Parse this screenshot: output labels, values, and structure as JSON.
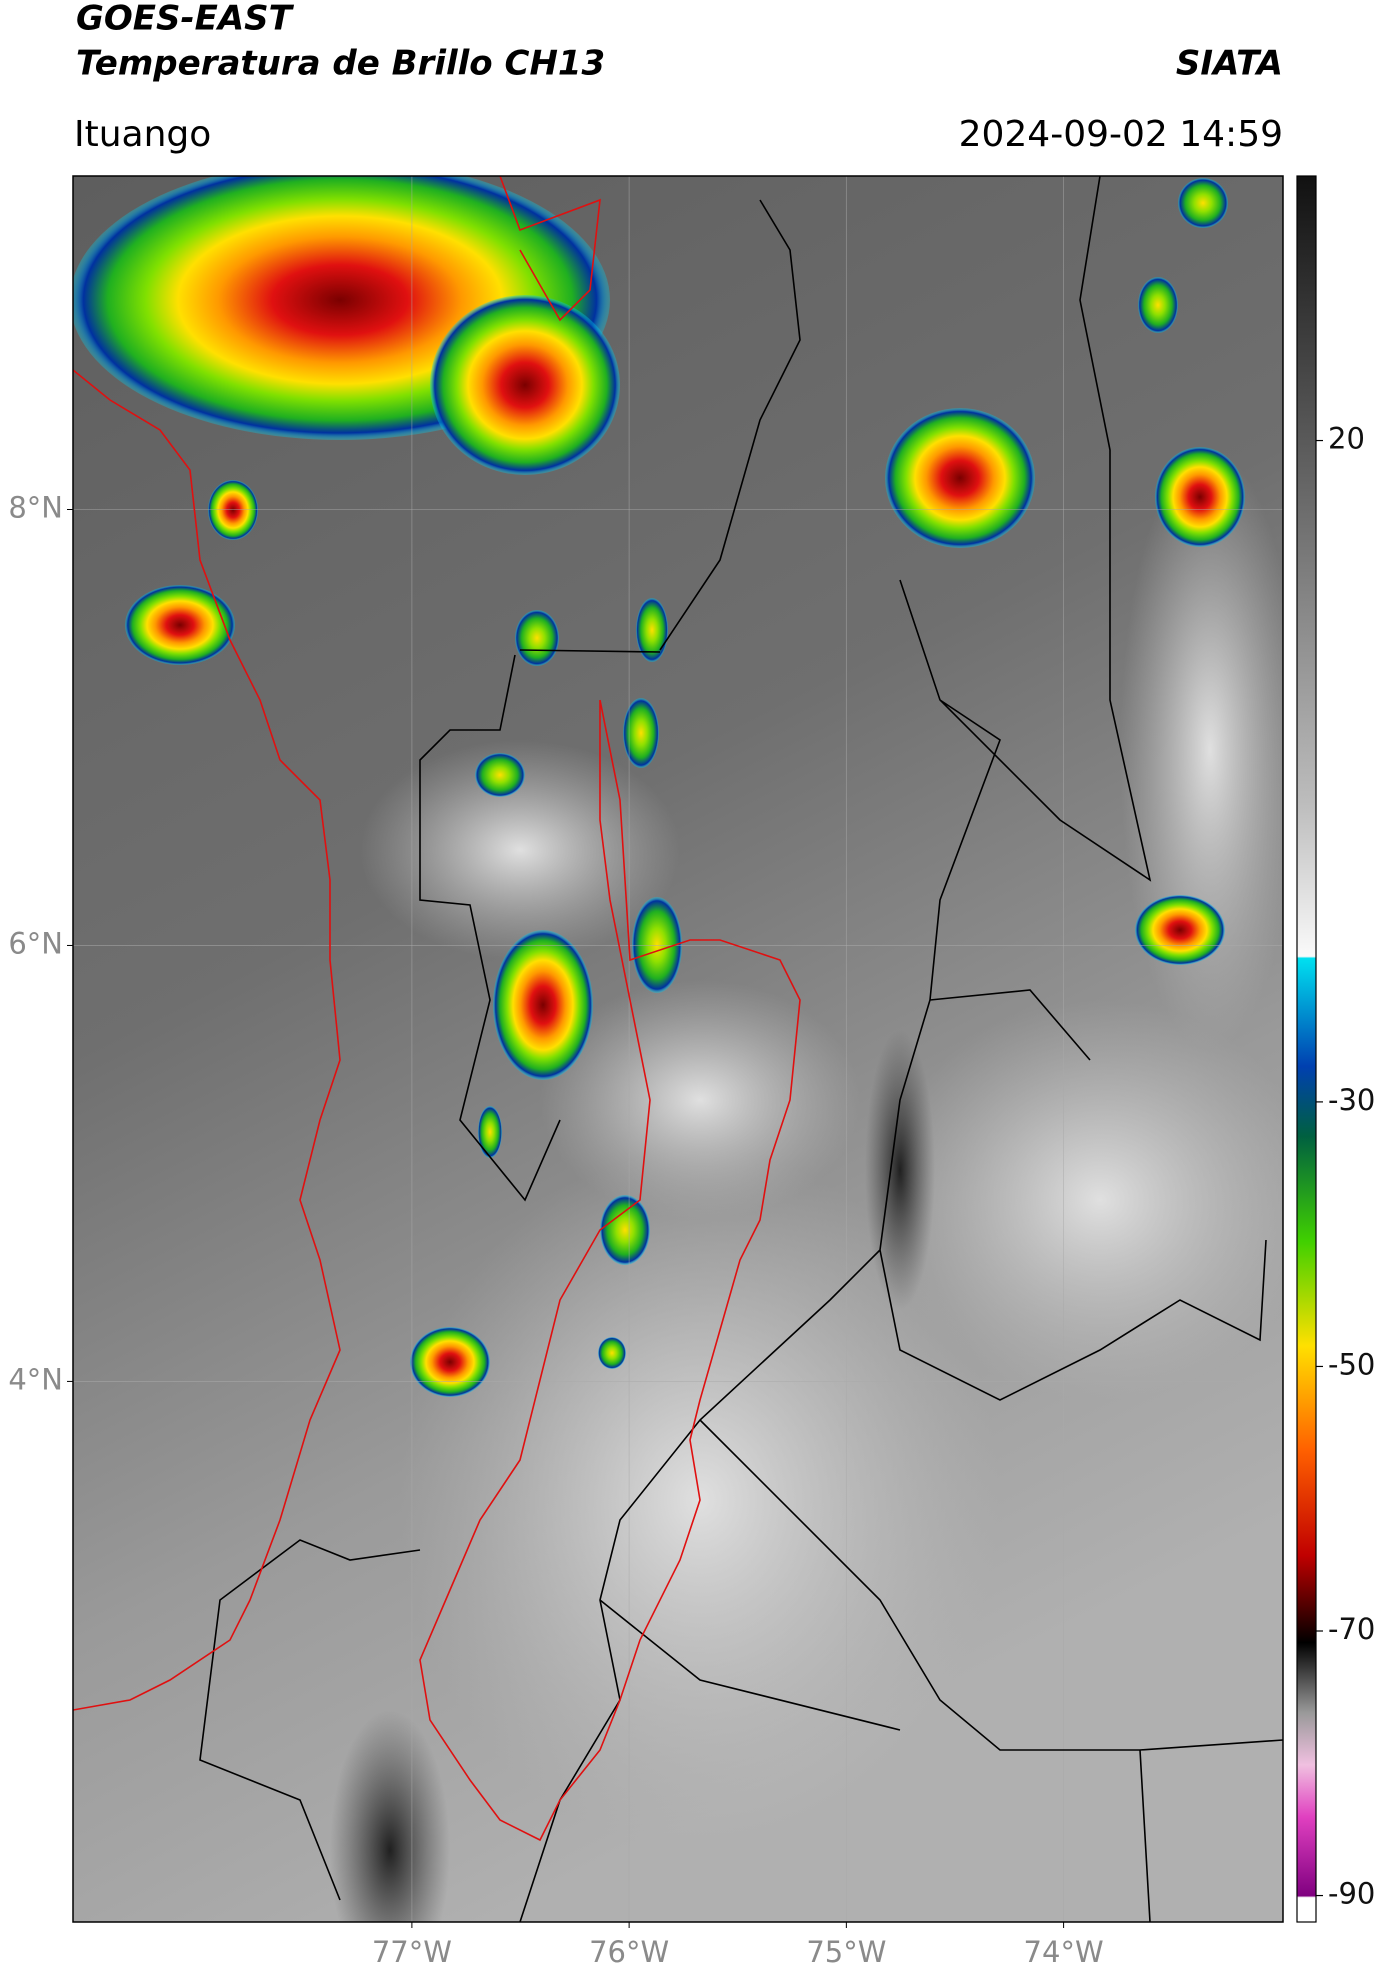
{
  "header": {
    "title": "GOES-EAST",
    "subtitle": "Temperatura de Brillo CH13",
    "source": "SIATA",
    "location": "Ituango",
    "datetime": "2024-09-02 14:59"
  },
  "map": {
    "lonlim": [
      -78.56,
      -72.99
    ],
    "latlim": [
      1.52,
      9.53
    ],
    "lon_ticks": [
      {
        "value": -77,
        "label": "77°W"
      },
      {
        "value": -76,
        "label": "76°W"
      },
      {
        "value": -75,
        "label": "75°W"
      },
      {
        "value": -74,
        "label": "74°W"
      }
    ],
    "lat_ticks": [
      {
        "value": 8,
        "label": "8°N"
      },
      {
        "value": 6,
        "label": "6°N"
      },
      {
        "value": 4,
        "label": "4°N"
      }
    ],
    "grid": true
  },
  "colorbar": {
    "lim": [
      40,
      -92
    ],
    "ticks": [
      20,
      -30,
      -50,
      -70,
      -90
    ]
  }
}
